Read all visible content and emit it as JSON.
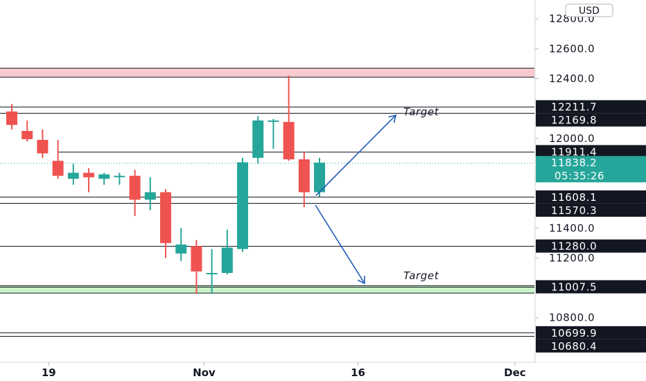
{
  "chart_data": {
    "type": "candlestick",
    "currency": "USD",
    "price_axis": {
      "ylim": [
        10560,
        12870
      ],
      "ticks": [
        "12800.0",
        "12600.0",
        "12400.0",
        "12000.0",
        "11400.0",
        "11200.0",
        "10800.0"
      ],
      "tick_values": [
        12800,
        12600,
        12400,
        12000,
        11400,
        11200,
        10800
      ]
    },
    "time_axis": {
      "ticks": [
        "19",
        "Nov",
        "16",
        "Dec"
      ],
      "tick_bar_index": [
        2.4,
        12.5,
        22.5,
        32.7
      ]
    },
    "candles": [
      {
        "o": 12180,
        "h": 12230,
        "l": 12060,
        "c": 12090
      },
      {
        "o": 12050,
        "h": 12120,
        "l": 11980,
        "c": 11995
      },
      {
        "o": 11990,
        "h": 12060,
        "l": 11870,
        "c": 11900
      },
      {
        "o": 11850,
        "h": 11990,
        "l": 11730,
        "c": 11750
      },
      {
        "o": 11730,
        "h": 11830,
        "l": 11690,
        "c": 11770
      },
      {
        "o": 11770,
        "h": 11800,
        "l": 11640,
        "c": 11740
      },
      {
        "o": 11730,
        "h": 11770,
        "l": 11690,
        "c": 11760
      },
      {
        "o": 11750,
        "h": 11770,
        "l": 11690,
        "c": 11750
      },
      {
        "o": 11750,
        "h": 11790,
        "l": 11480,
        "c": 11590
      },
      {
        "o": 11590,
        "h": 11740,
        "l": 11520,
        "c": 11640
      },
      {
        "o": 11640,
        "h": 11660,
        "l": 11200,
        "c": 11300
      },
      {
        "o": 11230,
        "h": 11400,
        "l": 11180,
        "c": 11290
      },
      {
        "o": 11280,
        "h": 11320,
        "l": 10960,
        "c": 11110
      },
      {
        "o": 11100,
        "h": 11260,
        "l": 10960,
        "c": 11100
      },
      {
        "o": 11100,
        "h": 11390,
        "l": 11090,
        "c": 11270
      },
      {
        "o": 11260,
        "h": 11870,
        "l": 11240,
        "c": 11840
      },
      {
        "o": 11870,
        "h": 12150,
        "l": 11830,
        "c": 12120
      },
      {
        "o": 12120,
        "h": 12130,
        "l": 11930,
        "c": 12120
      },
      {
        "o": 12110,
        "h": 12420,
        "l": 11850,
        "c": 11860
      },
      {
        "o": 11860,
        "h": 11910,
        "l": 11540,
        "c": 11640
      },
      {
        "o": 11640,
        "h": 11870,
        "l": 11610,
        "c": 11838
      }
    ],
    "horizontal_levels": [
      {
        "label": "12211.7",
        "value": 12211.7
      },
      {
        "label": "12169.8",
        "value": 12169.8
      },
      {
        "label": "11911.4",
        "value": 11911.4
      },
      {
        "label": "11608.1",
        "value": 11608.1
      },
      {
        "label": "11570.3",
        "value": 11570.3
      },
      {
        "label": "11280.0",
        "value": 11280.0
      },
      {
        "label": "11007.5",
        "value": 11007.5
      },
      {
        "label": "10699.9",
        "value": 10699.9
      },
      {
        "label": "10680.4",
        "value": 10680.4
      }
    ],
    "zones": [
      {
        "name": "resistance-zone",
        "top": 12470,
        "bottom": 12410,
        "color": "#f8c9cd"
      },
      {
        "name": "support-zone",
        "top": 11015,
        "bottom": 10965,
        "color": "#c9f2c8"
      }
    ],
    "current_price": {
      "label": "11838.2",
      "value": 11838.2,
      "countdown": "05:35:26"
    },
    "annotations": [
      {
        "text": "Target",
        "value": 12155
      },
      {
        "text": "Target",
        "value": 11030
      }
    ],
    "colors": {
      "up": "#26a69a",
      "down": "#ef5350",
      "arrow": "#1e5bb5",
      "level_label_bg": "#131722",
      "current_label_bg": "#26a69a"
    }
  }
}
